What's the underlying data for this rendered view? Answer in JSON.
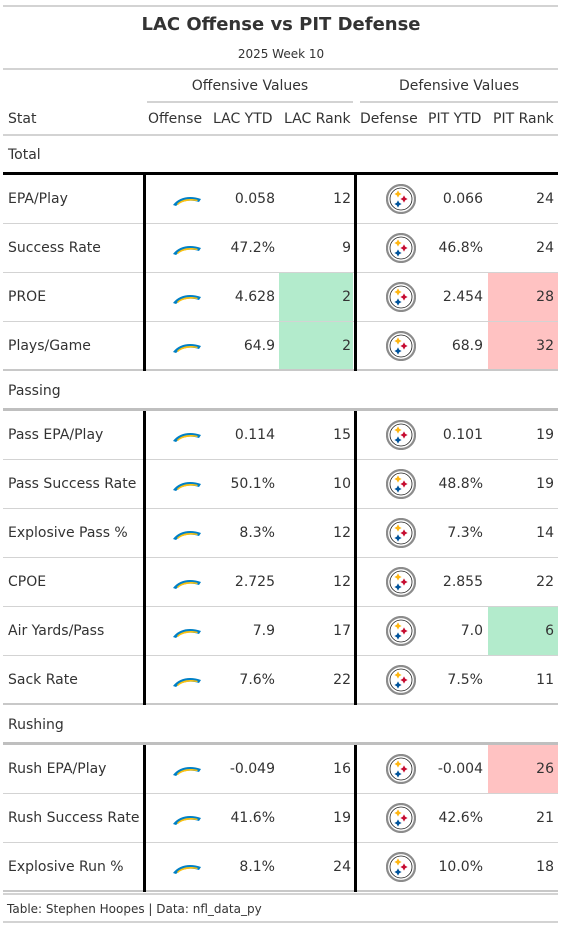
{
  "header": {
    "title": "LAC Offense vs PIT Defense",
    "subtitle": "2025 Week 10"
  },
  "spanners": {
    "offense": "Offensive Values",
    "defense": "Defensive Values"
  },
  "columns": [
    "Stat",
    "Offense",
    "LAC YTD",
    "LAC Rank",
    "Defense",
    "PIT YTD",
    "PIT Rank"
  ],
  "colors": {
    "good": "#b3ebcc",
    "bad": "#ffc2c2",
    "chargers_blue": "#0080c6",
    "chargers_gold": "#ffc20e",
    "steelers_yellow": "#ffb612",
    "steelers_red": "#c60c30",
    "steelers_blue": "#00539b"
  },
  "chart_data": {
    "type": "table",
    "title": "LAC Offense vs PIT Defense",
    "subtitle": "2025 Week 10",
    "sections": [
      {
        "name": "Total",
        "rows": [
          {
            "stat": "EPA/Play",
            "offense_logo": "chargers-logo",
            "lac_ytd": "0.058",
            "lac_rank": 12,
            "defense_logo": "steelers-logo",
            "pit_ytd": "0.066",
            "pit_rank": 24,
            "lac_rank_highlight": "",
            "pit_rank_highlight": ""
          },
          {
            "stat": "Success Rate",
            "offense_logo": "chargers-logo",
            "lac_ytd": "47.2%",
            "lac_rank": 9,
            "defense_logo": "steelers-logo",
            "pit_ytd": "46.8%",
            "pit_rank": 24,
            "lac_rank_highlight": "",
            "pit_rank_highlight": ""
          },
          {
            "stat": "PROE",
            "offense_logo": "chargers-logo",
            "lac_ytd": "4.628",
            "lac_rank": 2,
            "defense_logo": "steelers-logo",
            "pit_ytd": "2.454",
            "pit_rank": 28,
            "lac_rank_highlight": "good",
            "pit_rank_highlight": "bad"
          },
          {
            "stat": "Plays/Game",
            "offense_logo": "chargers-logo",
            "lac_ytd": "64.9",
            "lac_rank": 2,
            "defense_logo": "steelers-logo",
            "pit_ytd": "68.9",
            "pit_rank": 32,
            "lac_rank_highlight": "good",
            "pit_rank_highlight": "bad"
          }
        ]
      },
      {
        "name": "Passing",
        "rows": [
          {
            "stat": "Pass EPA/Play",
            "offense_logo": "chargers-logo",
            "lac_ytd": "0.114",
            "lac_rank": 15,
            "defense_logo": "steelers-logo",
            "pit_ytd": "0.101",
            "pit_rank": 19,
            "lac_rank_highlight": "",
            "pit_rank_highlight": ""
          },
          {
            "stat": "Pass Success Rate",
            "offense_logo": "chargers-logo",
            "lac_ytd": "50.1%",
            "lac_rank": 10,
            "defense_logo": "steelers-logo",
            "pit_ytd": "48.8%",
            "pit_rank": 19,
            "lac_rank_highlight": "",
            "pit_rank_highlight": ""
          },
          {
            "stat": "Explosive Pass %",
            "offense_logo": "chargers-logo",
            "lac_ytd": "8.3%",
            "lac_rank": 12,
            "defense_logo": "steelers-logo",
            "pit_ytd": "7.3%",
            "pit_rank": 14,
            "lac_rank_highlight": "",
            "pit_rank_highlight": ""
          },
          {
            "stat": "CPOE",
            "offense_logo": "chargers-logo",
            "lac_ytd": "2.725",
            "lac_rank": 12,
            "defense_logo": "steelers-logo",
            "pit_ytd": "2.855",
            "pit_rank": 22,
            "lac_rank_highlight": "",
            "pit_rank_highlight": ""
          },
          {
            "stat": "Air Yards/Pass",
            "offense_logo": "chargers-logo",
            "lac_ytd": "7.9",
            "lac_rank": 17,
            "defense_logo": "steelers-logo",
            "pit_ytd": "7.0",
            "pit_rank": 6,
            "lac_rank_highlight": "",
            "pit_rank_highlight": "good"
          },
          {
            "stat": "Sack Rate",
            "offense_logo": "chargers-logo",
            "lac_ytd": "7.6%",
            "lac_rank": 22,
            "defense_logo": "steelers-logo",
            "pit_ytd": "7.5%",
            "pit_rank": 11,
            "lac_rank_highlight": "",
            "pit_rank_highlight": ""
          }
        ]
      },
      {
        "name": "Rushing",
        "rows": [
          {
            "stat": "Rush EPA/Play",
            "offense_logo": "chargers-logo",
            "lac_ytd": "-0.049",
            "lac_rank": 16,
            "defense_logo": "steelers-logo",
            "pit_ytd": "-0.004",
            "pit_rank": 26,
            "lac_rank_highlight": "",
            "pit_rank_highlight": "bad"
          },
          {
            "stat": "Rush Success Rate",
            "offense_logo": "chargers-logo",
            "lac_ytd": "41.6%",
            "lac_rank": 19,
            "defense_logo": "steelers-logo",
            "pit_ytd": "42.6%",
            "pit_rank": 21,
            "lac_rank_highlight": "",
            "pit_rank_highlight": ""
          },
          {
            "stat": "Explosive Run %",
            "offense_logo": "chargers-logo",
            "lac_ytd": "8.1%",
            "lac_rank": 24,
            "defense_logo": "steelers-logo",
            "pit_ytd": "10.0%",
            "pit_rank": 18,
            "lac_rank_highlight": "",
            "pit_rank_highlight": ""
          }
        ]
      }
    ]
  },
  "footer": {
    "source": "Table: Stephen Hoopes | Data: nfl_data_py"
  }
}
